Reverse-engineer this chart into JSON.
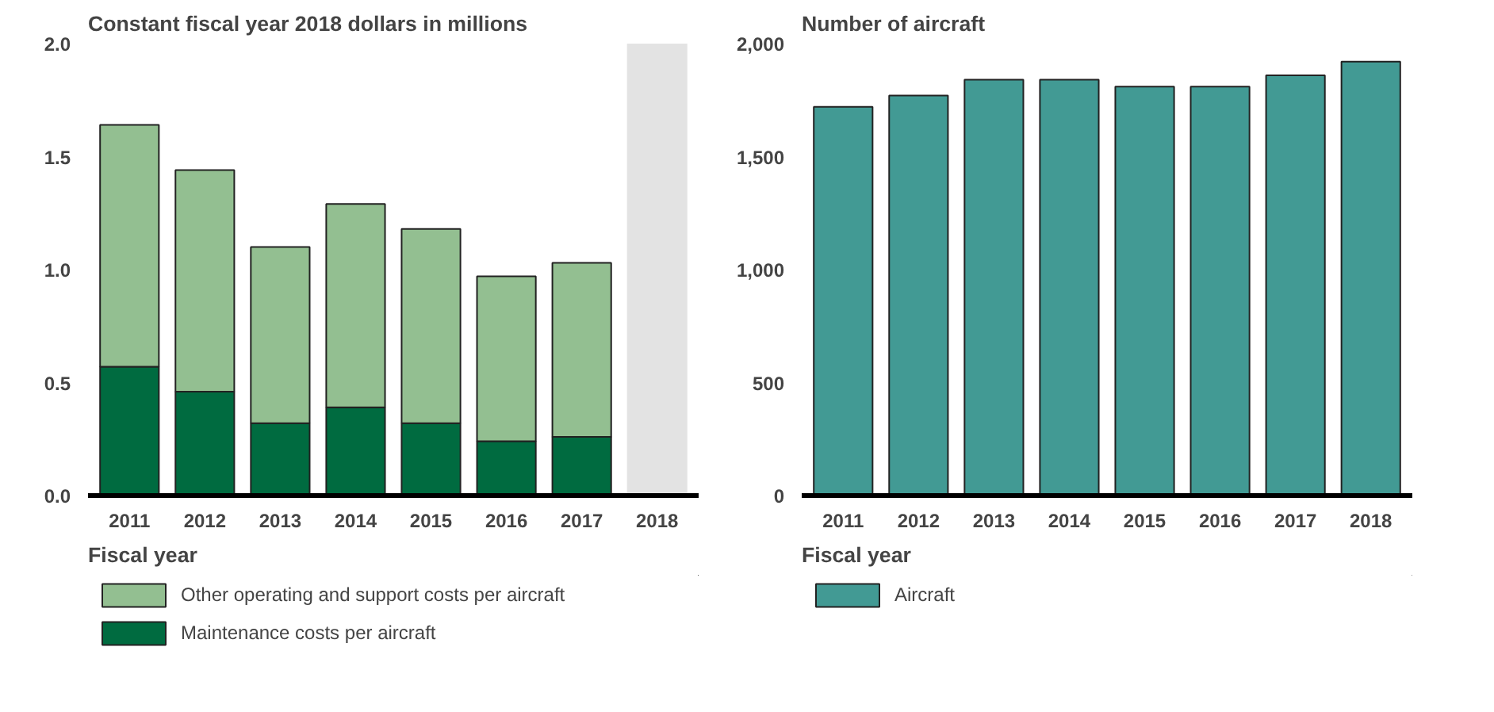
{
  "chart_data": [
    {
      "type": "bar",
      "title": "Constant fiscal year 2018 dollars in millions",
      "xlabel": "Fiscal year",
      "categories": [
        "2011",
        "2012",
        "2013",
        "2014",
        "2015",
        "2016",
        "2017",
        "2018"
      ],
      "stacked": true,
      "series": [
        {
          "name": "Maintenance costs per aircraft",
          "color": "#006b40",
          "values": [
            0.57,
            0.46,
            0.32,
            0.39,
            0.32,
            0.24,
            0.26,
            null
          ]
        },
        {
          "name": "Other operating and support costs per aircraft",
          "color": "#93bf91",
          "values": [
            1.07,
            0.98,
            0.78,
            0.9,
            0.86,
            0.73,
            0.77,
            null
          ]
        }
      ],
      "ylim": [
        0,
        2.0
      ],
      "yticks": [
        {
          "value": 0,
          "label": "0.0"
        },
        0.5,
        {
          "value": 1,
          "label": "1.0"
        },
        1.5,
        {
          "value": 2,
          "label": "2.0"
        }
      ],
      "bands": [
        {
          "axis": "x",
          "from": "2018",
          "to": "2018",
          "color": "#e3e3e3"
        }
      ],
      "grid": false,
      "legend": "bottom"
    },
    {
      "type": "bar",
      "title": "Number of aircraft",
      "xlabel": "Fiscal year",
      "categories": [
        "2011",
        "2012",
        "2013",
        "2014",
        "2015",
        "2016",
        "2017",
        "2018"
      ],
      "series": [
        {
          "name": "Aircraft",
          "color": "#429a94",
          "values": [
            1720,
            1770,
            1840,
            1840,
            1810,
            1810,
            1860,
            1920
          ]
        }
      ],
      "ylim": [
        0,
        2000
      ],
      "yticks": [
        0,
        500,
        {
          "value": 1000,
          "label": "1,000"
        },
        {
          "value": 1500,
          "label": "1,500"
        },
        {
          "value": 2000,
          "label": "2,000"
        }
      ],
      "grid": false,
      "legend": "bottom"
    }
  ]
}
